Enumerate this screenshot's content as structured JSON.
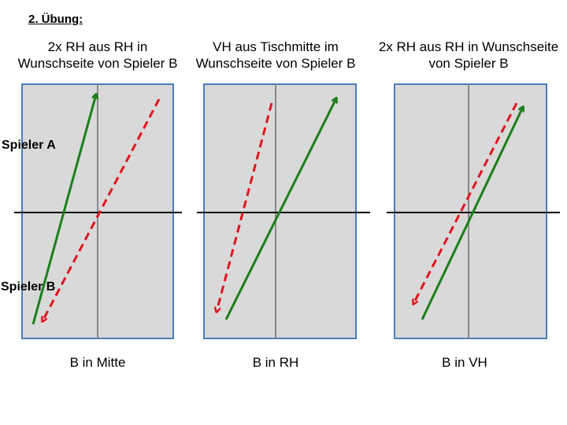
{
  "heading": "2. Übung:",
  "players": {
    "a": "Spieler A",
    "b": "Spieler B"
  },
  "panels": [
    {
      "title": "2x RH aus RH in Wunschseite von Spieler B",
      "caption": "B in Mitte"
    },
    {
      "title": "VH aus Tischmitte im Wunschseite von Spieler B",
      "caption": "B in RH"
    },
    {
      "title": "2x RH aus RH in Wunschseite von Spieler B",
      "caption": "B in VH"
    }
  ]
}
